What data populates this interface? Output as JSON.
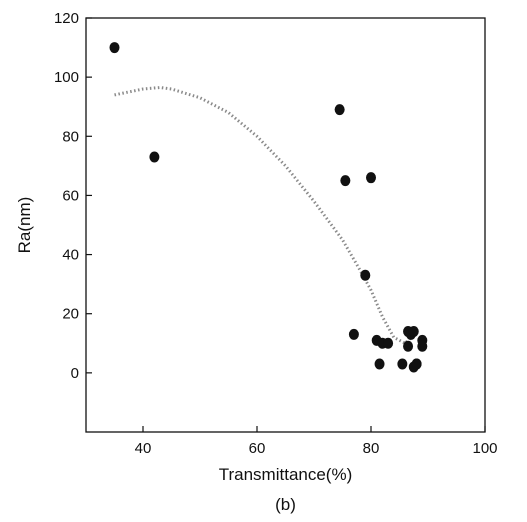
{
  "chart_data": {
    "type": "scatter",
    "title": "",
    "caption": "(b)",
    "xlabel": "Transmittance(%)",
    "ylabel": "Ra(nm)",
    "xlim": [
      30,
      100
    ],
    "ylim": [
      -20,
      120
    ],
    "xticks": [
      40,
      60,
      80,
      100
    ],
    "yticks": [
      0,
      20,
      40,
      60,
      80,
      100,
      120
    ],
    "grid": false,
    "legend": "none",
    "colors": {
      "points": "#111111",
      "trend": "#8a8a8a",
      "axis": "#111111"
    },
    "series": [
      {
        "kind": "points",
        "x": [
          35,
          42,
          74.5,
          75.5,
          80,
          79,
          77,
          81,
          82,
          83,
          81.5,
          85.5,
          86.5,
          87,
          87.5,
          88,
          89,
          89,
          86.5,
          87.5,
          88
        ],
        "y": [
          110,
          73,
          89,
          65,
          66,
          33,
          13,
          11,
          10,
          10,
          3,
          3,
          14,
          13,
          14,
          3,
          11,
          9,
          9,
          2,
          3
        ]
      },
      {
        "kind": "trend",
        "style": "dotted",
        "x": [
          35,
          40,
          43,
          45,
          50,
          55,
          60,
          65,
          70,
          75,
          78,
          80,
          82,
          84,
          86,
          87
        ],
        "y": [
          94,
          96,
          96.5,
          96,
          93,
          88,
          80,
          70,
          58,
          45,
          35,
          28,
          19,
          12,
          10,
          12
        ]
      }
    ]
  }
}
